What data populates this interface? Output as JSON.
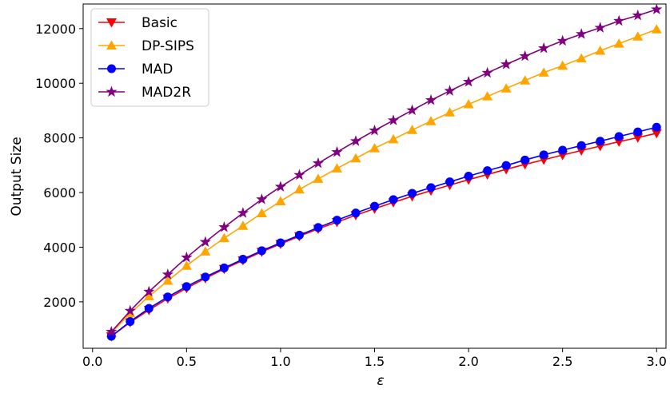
{
  "chart_data": {
    "type": "line",
    "xlabel": "ε",
    "ylabel": "Output Size",
    "xlim": [
      -0.05,
      3.05
    ],
    "ylim": [
      300,
      12900
    ],
    "x_ticks": [
      0.0,
      0.5,
      1.0,
      1.5,
      2.0,
      2.5,
      3.0
    ],
    "x_tick_labels": [
      "0.0",
      "0.5",
      "1.0",
      "1.5",
      "2.0",
      "2.5",
      "3.0"
    ],
    "y_ticks": [
      2000,
      4000,
      6000,
      8000,
      10000,
      12000
    ],
    "y_tick_labels": [
      "2000",
      "4000",
      "6000",
      "8000",
      "10000",
      "12000"
    ],
    "legend_position": "top-left",
    "grid": false,
    "x": [
      0.1,
      0.2,
      0.3,
      0.4,
      0.5,
      0.6,
      0.7,
      0.8,
      0.9,
      1.0,
      1.1,
      1.2,
      1.3,
      1.4,
      1.5,
      1.6,
      1.7,
      1.8,
      1.9,
      2.0,
      2.1,
      2.2,
      2.3,
      2.4,
      2.5,
      2.6,
      2.7,
      2.8,
      2.9,
      3.0
    ],
    "series": [
      {
        "name": "Basic",
        "color": "#ff0000",
        "marker": "triangle-down",
        "values": [
          740,
          1250,
          1700,
          2120,
          2500,
          2860,
          3200,
          3520,
          3830,
          4120,
          4400,
          4670,
          4920,
          5170,
          5410,
          5640,
          5860,
          6070,
          6270,
          6470,
          6660,
          6850,
          7030,
          7200,
          7370,
          7540,
          7700,
          7860,
          8010,
          8170
        ]
      },
      {
        "name": "DP-SIPS",
        "color": "#ffa500",
        "marker": "triangle-up",
        "values": [
          860,
          1580,
          2200,
          2770,
          3320,
          3840,
          4330,
          4780,
          5240,
          5680,
          6110,
          6500,
          6880,
          7250,
          7620,
          7950,
          8290,
          8610,
          8930,
          9230,
          9520,
          9810,
          10100,
          10390,
          10640,
          10910,
          11190,
          11450,
          11710,
          11970
        ]
      },
      {
        "name": "MAD",
        "color": "#0000ff",
        "marker": "circle",
        "values": [
          740,
          1280,
          1760,
          2180,
          2560,
          2910,
          3240,
          3560,
          3870,
          4160,
          4440,
          4720,
          4990,
          5250,
          5500,
          5740,
          5970,
          6180,
          6390,
          6600,
          6800,
          6990,
          7190,
          7380,
          7550,
          7720,
          7880,
          8050,
          8220,
          8390
        ]
      },
      {
        "name": "MAD2R",
        "color": "#800080",
        "marker": "star",
        "values": [
          900,
          1670,
          2370,
          3000,
          3620,
          4190,
          4730,
          5250,
          5750,
          6210,
          6640,
          7070,
          7480,
          7880,
          8270,
          8640,
          9010,
          9380,
          9720,
          10050,
          10380,
          10690,
          10990,
          11280,
          11550,
          11800,
          12030,
          12280,
          12480,
          12700
        ]
      }
    ]
  }
}
